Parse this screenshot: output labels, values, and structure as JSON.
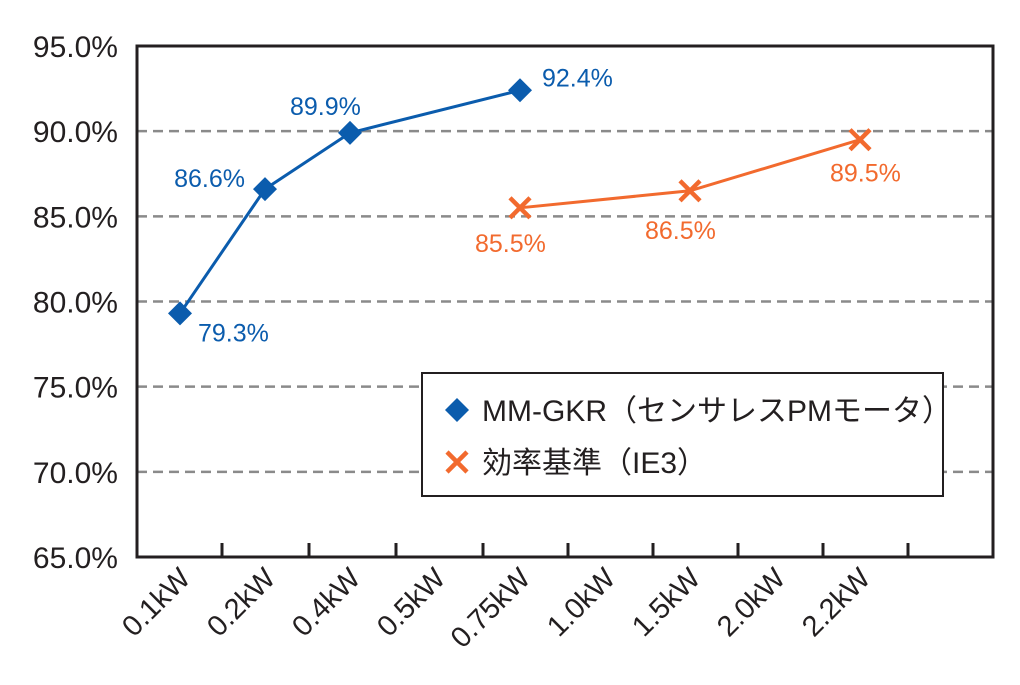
{
  "chart_data": {
    "type": "line",
    "title": "",
    "xlabel": "",
    "ylabel": "",
    "categories": [
      "0.1kW",
      "0.2kW",
      "0.4kW",
      "0.5kW",
      "0.75kW",
      "1.0kW",
      "1.5kW",
      "2.0kW",
      "2.2kW"
    ],
    "ylim": [
      65,
      95
    ],
    "yticks": [
      "65.0%",
      "70.0%",
      "75.0%",
      "80.0%",
      "85.0%",
      "90.0%",
      "95.0%"
    ],
    "ytick_values": [
      65,
      70,
      75,
      80,
      85,
      90,
      95
    ],
    "grid": "horizontal dashed",
    "legend_position": "bottom-right",
    "series": [
      {
        "name": "MM-GKR（センサレスPMモータ）",
        "color": "#0b5cad",
        "marker": "diamond",
        "points": [
          {
            "x": "0.1kW",
            "y": 79.3,
            "label": "79.3%"
          },
          {
            "x": "0.2kW",
            "y": 86.6,
            "label": "86.6%"
          },
          {
            "x": "0.4kW",
            "y": 89.9,
            "label": "89.9%"
          },
          {
            "x": "0.75kW",
            "y": 92.4,
            "label": "92.4%"
          }
        ]
      },
      {
        "name": "効率基準（IE3）",
        "color": "#f26a2e",
        "marker": "x",
        "points": [
          {
            "x": "0.75kW",
            "y": 85.5,
            "label": "85.5%"
          },
          {
            "x": "1.5kW",
            "y": 86.5,
            "label": "86.5%"
          },
          {
            "x": "2.2kW",
            "y": 89.5,
            "label": "89.5%"
          }
        ]
      }
    ]
  }
}
